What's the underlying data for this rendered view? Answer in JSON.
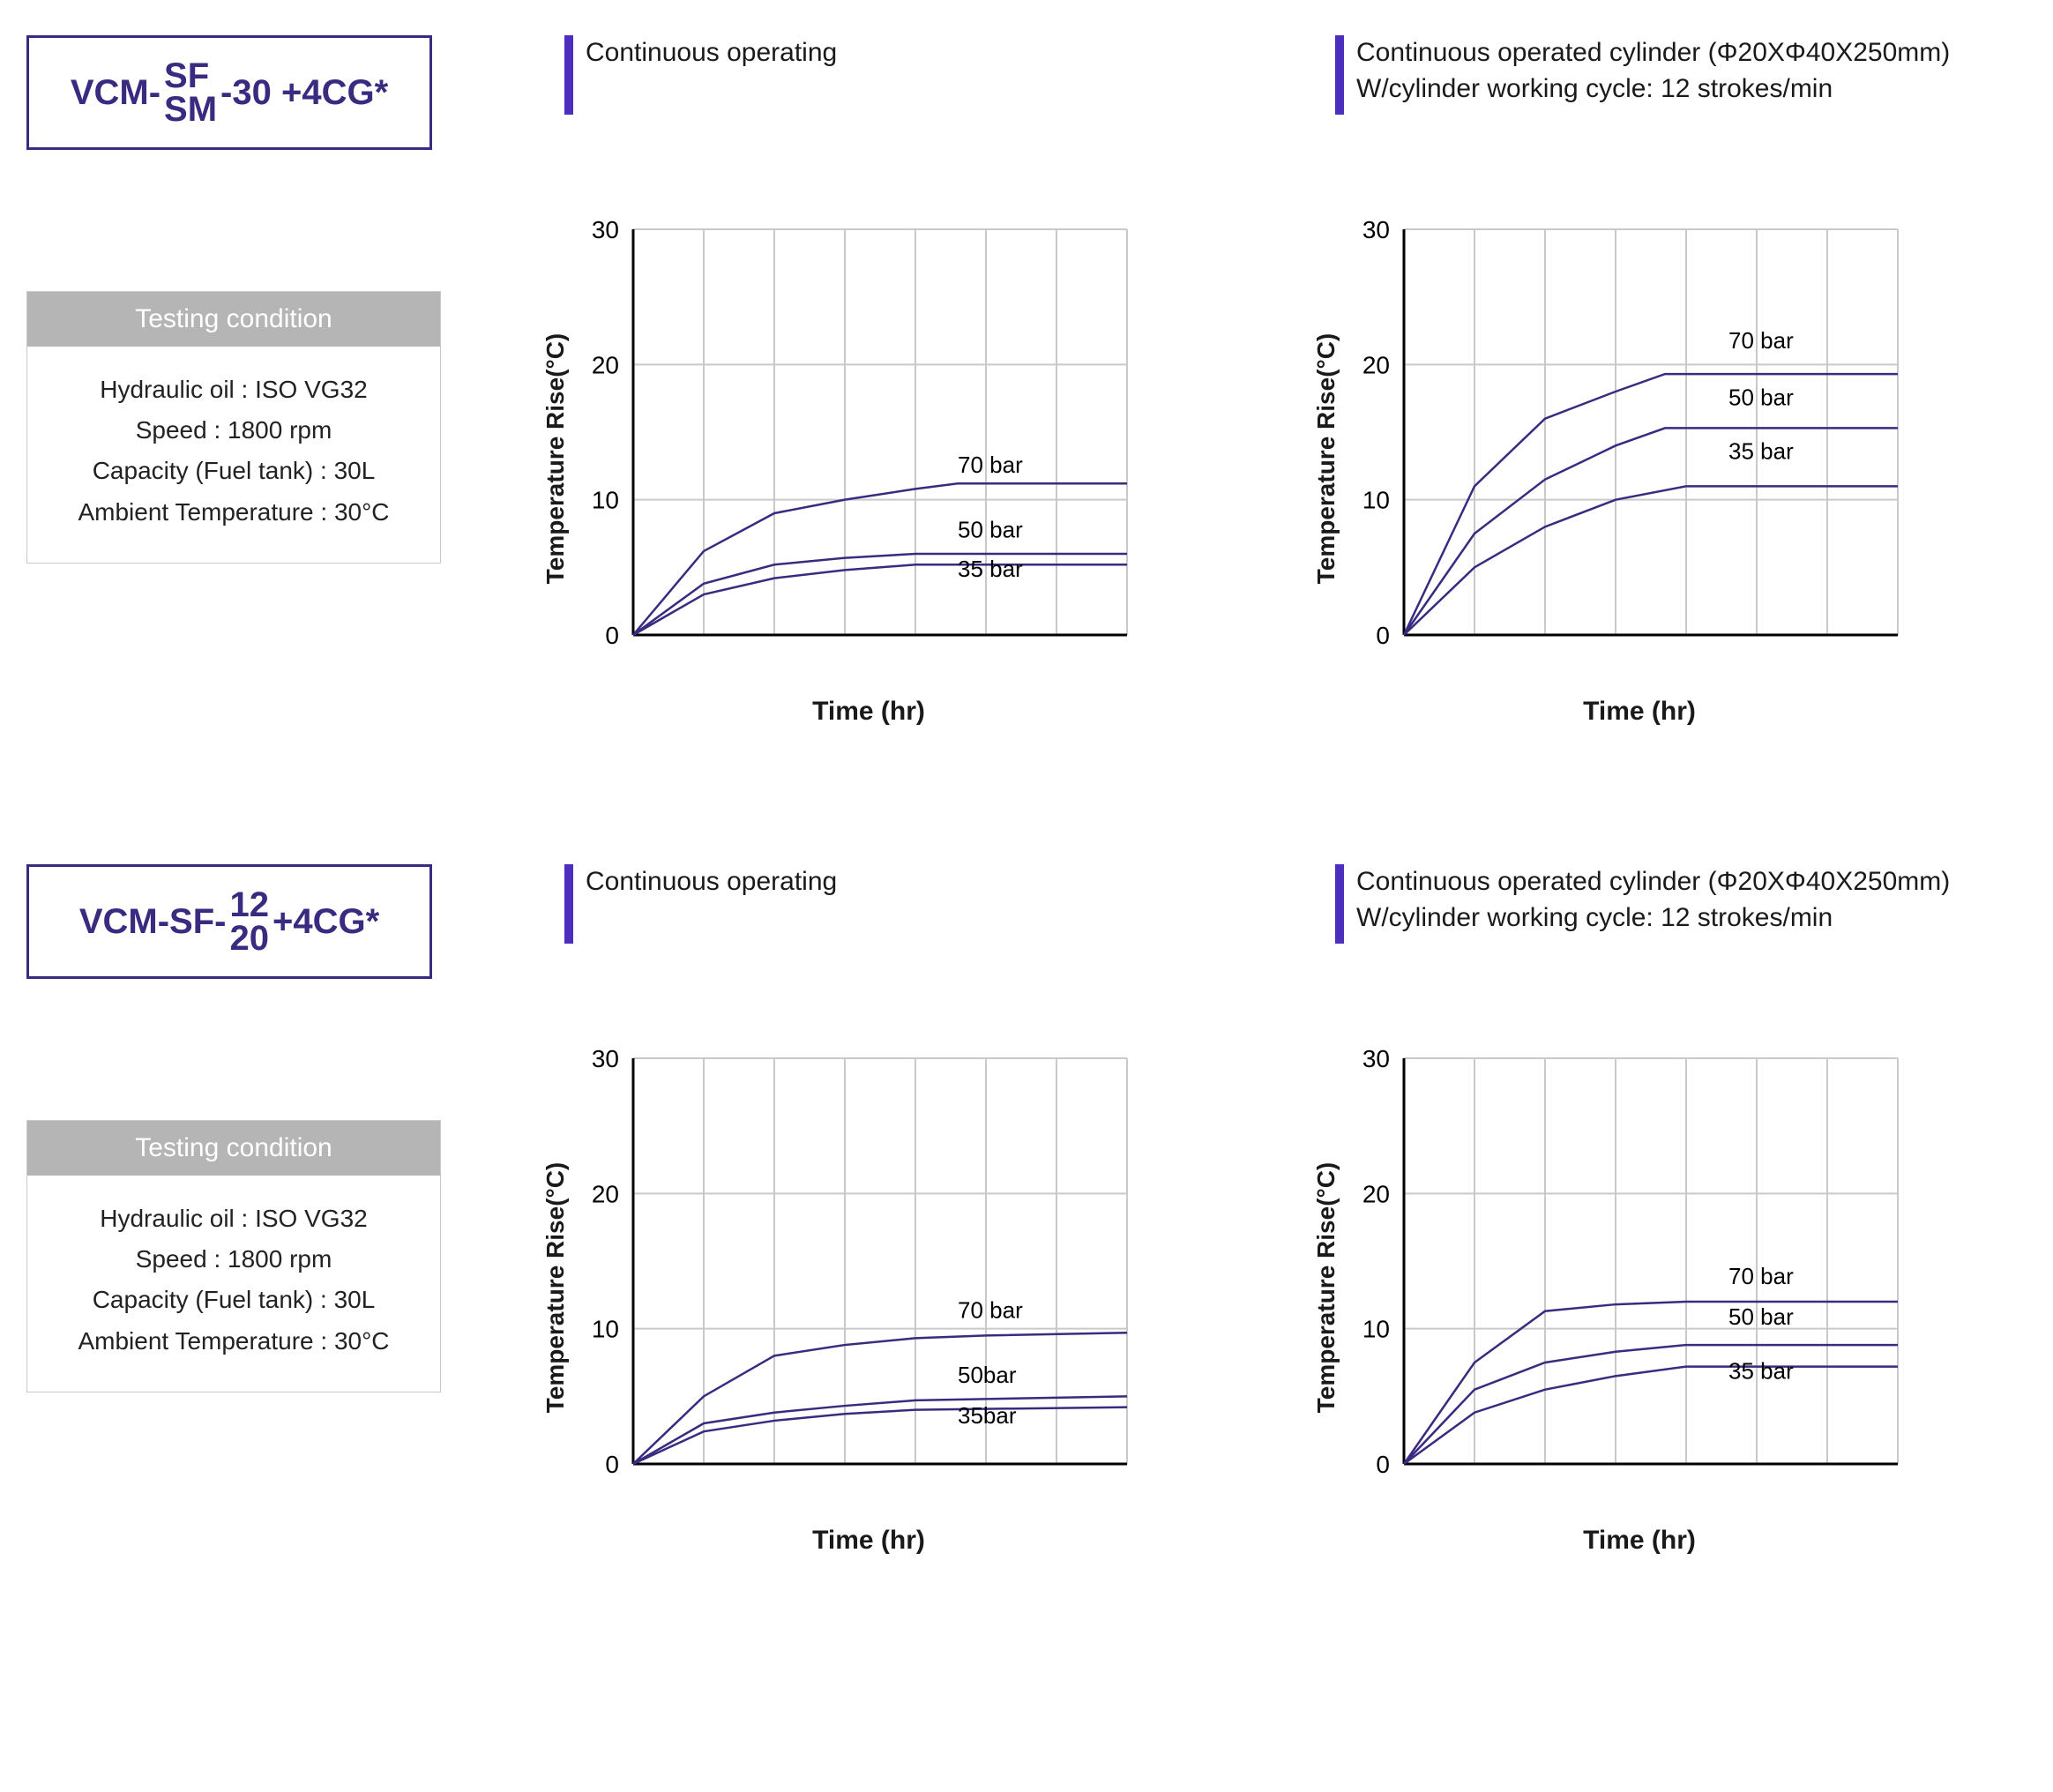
{
  "colors": {
    "brand": "#3a2a80",
    "accent_bar": "#4c2fbf",
    "grid": "#c9c9c9",
    "axis": "#000000",
    "line": "#3a2a80",
    "cond_header_bg": "#b5b5b5",
    "cond_header_fg": "#ffffff",
    "bg": "#ffffff"
  },
  "sections": [
    {
      "model": {
        "prefix": "VCM-",
        "stack_top": "SF",
        "stack_bottom": "SM",
        "suffix": "-30 +4CG*"
      },
      "conditions": {
        "header": "Testing condition",
        "lines": [
          "Hydraulic oil : ISO VG32",
          "Speed : 1800 rpm",
          "Capacity (Fuel tank) : 30L",
          "Ambient Temperature : 30°C"
        ]
      },
      "charts": [
        {
          "title_lines": [
            "Continuous operating"
          ],
          "ylabel": "Temperature Rise(°C)",
          "xlabel": "Time (hr)",
          "xlim": [
            0,
            7
          ],
          "xtick_step": 2,
          "ylim": [
            0,
            30
          ],
          "ytick_step": 10,
          "series": [
            {
              "label": "70 bar",
              "label_y": 12.0,
              "points": [
                [
                  0,
                  0
                ],
                [
                  1,
                  6.2
                ],
                [
                  2,
                  9.0
                ],
                [
                  3,
                  10.0
                ],
                [
                  4,
                  10.8
                ],
                [
                  4.6,
                  11.2
                ],
                [
                  7,
                  11.2
                ]
              ]
            },
            {
              "label": "50 bar",
              "label_y": 7.2,
              "points": [
                [
                  0,
                  0
                ],
                [
                  1,
                  3.8
                ],
                [
                  2,
                  5.2
                ],
                [
                  3,
                  5.7
                ],
                [
                  4,
                  6.0
                ],
                [
                  7,
                  6.0
                ]
              ]
            },
            {
              "label": "35 bar",
              "label_y": 4.3,
              "points": [
                [
                  0,
                  0
                ],
                [
                  1,
                  3.0
                ],
                [
                  2,
                  4.2
                ],
                [
                  3,
                  4.8
                ],
                [
                  4,
                  5.2
                ],
                [
                  7,
                  5.2
                ]
              ]
            }
          ]
        },
        {
          "title_lines": [
            "Continuous operated cylinder (Φ20XΦ40X250mm)",
            "W/cylinder working cycle: 12 strokes/min"
          ],
          "ylabel": "Temperature Rise(°C)",
          "xlabel": "Time (hr)",
          "xlim": [
            0,
            7
          ],
          "xtick_step": 2,
          "ylim": [
            0,
            30
          ],
          "ytick_step": 10,
          "series": [
            {
              "label": "70 bar",
              "label_y": 21.2,
              "points": [
                [
                  0,
                  0
                ],
                [
                  1,
                  11.0
                ],
                [
                  2,
                  16.0
                ],
                [
                  3,
                  18.0
                ],
                [
                  3.7,
                  19.3
                ],
                [
                  7,
                  19.3
                ]
              ]
            },
            {
              "label": "50 bar",
              "label_y": 17.0,
              "points": [
                [
                  0,
                  0
                ],
                [
                  1,
                  7.5
                ],
                [
                  2,
                  11.5
                ],
                [
                  3,
                  14.0
                ],
                [
                  3.7,
                  15.3
                ],
                [
                  7,
                  15.3
                ]
              ]
            },
            {
              "label": "35 bar",
              "label_y": 13.0,
              "points": [
                [
                  0,
                  0
                ],
                [
                  1,
                  5.0
                ],
                [
                  2,
                  8.0
                ],
                [
                  3,
                  10.0
                ],
                [
                  4,
                  11.0
                ],
                [
                  7,
                  11.0
                ]
              ]
            }
          ]
        }
      ]
    },
    {
      "model": {
        "prefix": "VCM-SF-",
        "stack_top": "12",
        "stack_bottom": "20",
        "suffix": "+4CG*"
      },
      "conditions": {
        "header": "Testing condition",
        "lines": [
          "Hydraulic oil : ISO VG32",
          "Speed : 1800 rpm",
          "Capacity (Fuel tank) : 30L",
          "Ambient Temperature : 30°C"
        ]
      },
      "charts": [
        {
          "title_lines": [
            "Continuous operating"
          ],
          "ylabel": "Temperature Rise(°C)",
          "xlabel": "Time (hr)",
          "xlim": [
            0,
            7
          ],
          "xtick_step": 2,
          "ylim": [
            0,
            30
          ],
          "ytick_step": 10,
          "series": [
            {
              "label": "70 bar",
              "label_y": 10.8,
              "points": [
                [
                  0,
                  0
                ],
                [
                  1,
                  5.0
                ],
                [
                  2,
                  8.0
                ],
                [
                  3,
                  8.8
                ],
                [
                  4,
                  9.3
                ],
                [
                  5,
                  9.5
                ],
                [
                  7,
                  9.7
                ]
              ]
            },
            {
              "label": "50bar",
              "label_y": 6.0,
              "points": [
                [
                  0,
                  0
                ],
                [
                  1,
                  3.0
                ],
                [
                  2,
                  3.8
                ],
                [
                  3,
                  4.3
                ],
                [
                  4,
                  4.7
                ],
                [
                  7,
                  5.0
                ]
              ]
            },
            {
              "label": "35bar",
              "label_y": 3.0,
              "points": [
                [
                  0,
                  0
                ],
                [
                  1,
                  2.4
                ],
                [
                  2,
                  3.2
                ],
                [
                  3,
                  3.7
                ],
                [
                  4,
                  4.0
                ],
                [
                  7,
                  4.2
                ]
              ]
            }
          ]
        },
        {
          "title_lines": [
            "Continuous operated cylinder (Φ20XΦ40X250mm)",
            "W/cylinder working cycle: 12 strokes/min"
          ],
          "ylabel": "Temperature Rise(°C)",
          "xlabel": "Time (hr)",
          "xlim": [
            0,
            7
          ],
          "xtick_step": 2,
          "ylim": [
            0,
            30
          ],
          "ytick_step": 10,
          "series": [
            {
              "label": "70 bar",
              "label_y": 13.3,
              "points": [
                [
                  0,
                  0
                ],
                [
                  1,
                  7.5
                ],
                [
                  2,
                  11.3
                ],
                [
                  3,
                  11.8
                ],
                [
                  4,
                  12.0
                ],
                [
                  7,
                  12.0
                ]
              ]
            },
            {
              "label": "50 bar",
              "label_y": 10.3,
              "points": [
                [
                  0,
                  0
                ],
                [
                  1,
                  5.5
                ],
                [
                  2,
                  7.5
                ],
                [
                  3,
                  8.3
                ],
                [
                  4,
                  8.8
                ],
                [
                  7,
                  8.8
                ]
              ]
            },
            {
              "label": "35 bar",
              "label_y": 6.3,
              "points": [
                [
                  0,
                  0
                ],
                [
                  1,
                  3.8
                ],
                [
                  2,
                  5.5
                ],
                [
                  3,
                  6.5
                ],
                [
                  4,
                  7.2
                ],
                [
                  7,
                  7.2
                ]
              ]
            }
          ]
        }
      ]
    }
  ]
}
